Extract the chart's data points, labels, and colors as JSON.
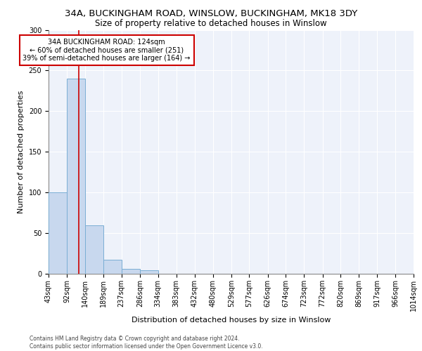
{
  "title1": "34A, BUCKINGHAM ROAD, WINSLOW, BUCKINGHAM, MK18 3DY",
  "title2": "Size of property relative to detached houses in Winslow",
  "xlabel": "Distribution of detached houses by size in Winslow",
  "ylabel": "Number of detached properties",
  "bar_values": [
    100,
    240,
    60,
    17,
    6,
    4,
    0,
    0,
    0,
    0,
    0,
    0,
    0,
    0,
    0,
    0,
    0,
    0,
    0,
    0
  ],
  "bin_edges": [
    43,
    92,
    140,
    189,
    237,
    286,
    334,
    383,
    432,
    480,
    529,
    577,
    626,
    674,
    723,
    772,
    820,
    869,
    917,
    966,
    1014
  ],
  "x_tick_labels": [
    "43sqm",
    "92sqm",
    "140sqm",
    "189sqm",
    "237sqm",
    "286sqm",
    "334sqm",
    "383sqm",
    "432sqm",
    "480sqm",
    "529sqm",
    "577sqm",
    "626sqm",
    "674sqm",
    "723sqm",
    "772sqm",
    "820sqm",
    "869sqm",
    "917sqm",
    "966sqm",
    "1014sqm"
  ],
  "bar_color": "#c8d8ee",
  "bar_edgecolor": "#7aaed4",
  "vline_x": 124,
  "vline_color": "#cc0000",
  "annotation_text": "34A BUCKINGHAM ROAD: 124sqm\n← 60% of detached houses are smaller (251)\n39% of semi-detached houses are larger (164) →",
  "annotation_box_color": "#ffffff",
  "annotation_box_edgecolor": "#cc0000",
  "ylim": [
    0,
    300
  ],
  "yticks": [
    0,
    50,
    100,
    150,
    200,
    250,
    300
  ],
  "background_color": "#eef2fa",
  "footer_text": "Contains HM Land Registry data © Crown copyright and database right 2024.\nContains public sector information licensed under the Open Government Licence v3.0.",
  "title1_fontsize": 9.5,
  "title2_fontsize": 8.5,
  "xlabel_fontsize": 8,
  "ylabel_fontsize": 8,
  "tick_fontsize": 7,
  "annotation_fontsize": 7,
  "footer_fontsize": 5.5
}
